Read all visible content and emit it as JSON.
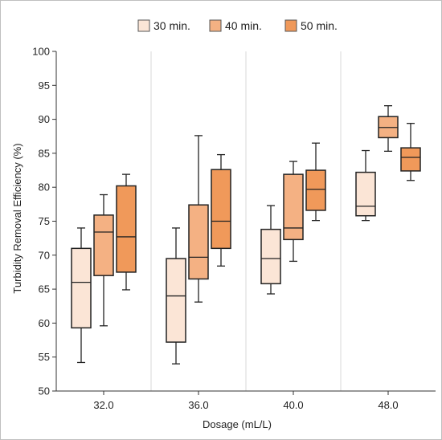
{
  "chart_data": {
    "type": "box",
    "xlabel": "Dosage (mL/L)",
    "ylabel": "Turbidity Removal Efficiency (%)",
    "ylim": [
      50,
      100
    ],
    "yticks": [
      50,
      55,
      60,
      65,
      70,
      75,
      80,
      85,
      90,
      95,
      100
    ],
    "categories": [
      "32.0",
      "36.0",
      "40.0",
      "48.0"
    ],
    "grid": "vertical",
    "legend_position": "top-center",
    "series": [
      {
        "name": "30 min.",
        "color": "#fbe5d6",
        "boxes": [
          {
            "min": 54.2,
            "q1": 59.3,
            "median": 66.0,
            "q3": 71.0,
            "max": 74.0
          },
          {
            "min": 54.0,
            "q1": 57.2,
            "median": 64.0,
            "q3": 69.5,
            "max": 74.0
          },
          {
            "min": 64.3,
            "q1": 65.8,
            "median": 69.5,
            "q3": 73.8,
            "max": 77.3
          },
          {
            "min": 75.1,
            "q1": 75.8,
            "median": 77.2,
            "q3": 82.2,
            "max": 85.4
          }
        ]
      },
      {
        "name": "40 min.",
        "color": "#f4b183",
        "boxes": [
          {
            "min": 59.6,
            "q1": 67.0,
            "median": 73.4,
            "q3": 75.9,
            "max": 78.9
          },
          {
            "min": 63.1,
            "q1": 66.5,
            "median": 69.7,
            "q3": 77.4,
            "max": 87.6
          },
          {
            "min": 69.1,
            "q1": 72.3,
            "median": 74.0,
            "q3": 81.9,
            "max": 83.8
          },
          {
            "min": 85.3,
            "q1": 87.3,
            "median": 88.8,
            "q3": 90.4,
            "max": 92.0
          }
        ]
      },
      {
        "name": "50 min.",
        "color": "#f0995a",
        "boxes": [
          {
            "min": 64.9,
            "q1": 67.5,
            "median": 72.7,
            "q3": 80.2,
            "max": 81.9
          },
          {
            "min": 68.4,
            "q1": 71.0,
            "median": 75.0,
            "q3": 82.6,
            "max": 84.8
          },
          {
            "min": 75.1,
            "q1": 76.6,
            "median": 79.7,
            "q3": 82.5,
            "max": 86.5
          },
          {
            "min": 81.0,
            "q1": 82.4,
            "median": 84.4,
            "q3": 85.8,
            "max": 89.4
          }
        ]
      }
    ]
  }
}
